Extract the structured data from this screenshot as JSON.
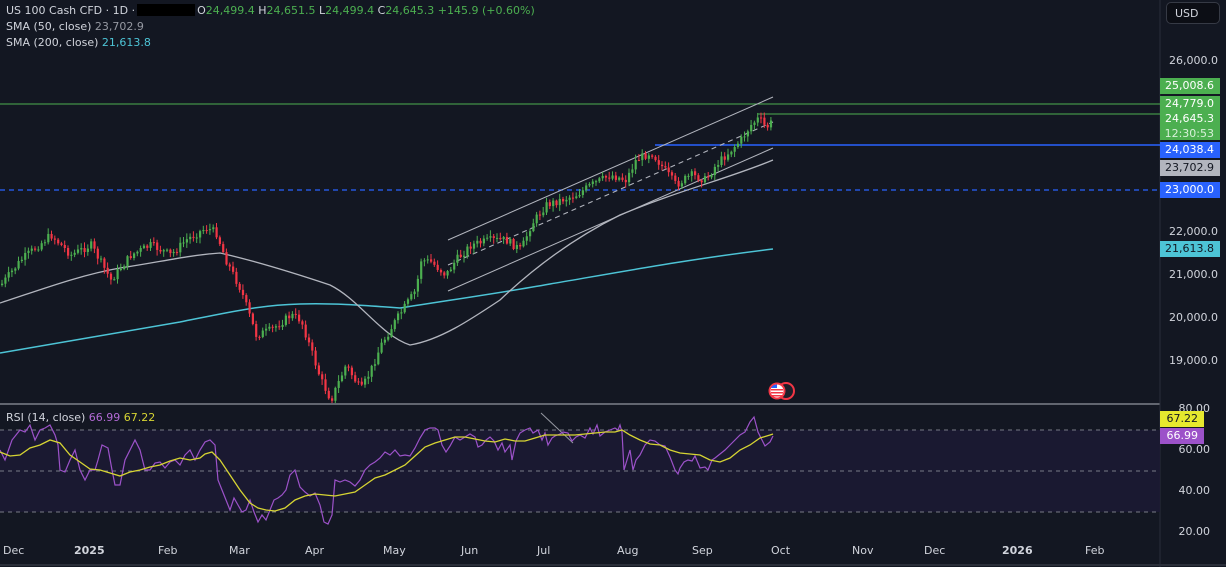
{
  "header": {
    "symbol": "US 100 Cash CFD · 1D ·",
    "ohlc": {
      "o_label": "O",
      "o": "24,499.4",
      "h_label": "H",
      "h": "24,651.5",
      "l_label": "L",
      "l": "24,499.4",
      "c_label": "C",
      "c": "24,645.3",
      "change": "+145.9 (+0.60%)"
    },
    "sma50": {
      "label": "SMA (50, close)",
      "value": "23,702.9"
    },
    "sma200": {
      "label": "SMA (200, close)",
      "value": "21,613.8"
    },
    "currency_button": "USD"
  },
  "rsi_legend": {
    "label": "RSI (14, close)",
    "rsi": "66.99",
    "ma": "67.22"
  },
  "price_axis": {
    "ticks": [
      "26,000.0",
      "22,000.0",
      "21,000.0",
      "20,000.0",
      "19,000.0"
    ],
    "tags": {
      "resistance_top": "25,008.6",
      "resistance": "24,779.0",
      "last_price": "24,645.3",
      "countdown": "12:30:53",
      "support_blue": "24,038.4",
      "sma50": "23,702.9",
      "support_dashed": "23,000.0",
      "sma200": "21,613.8"
    }
  },
  "rsi_axis": {
    "ticks": [
      "80.00",
      "60.00",
      "40.00",
      "20.00"
    ],
    "tags": {
      "ma": "67.22",
      "rsi": "66.99"
    }
  },
  "time_axis": [
    "Dec",
    "2025",
    "Feb",
    "Mar",
    "Apr",
    "May",
    "Jun",
    "Jul",
    "Aug",
    "Sep",
    "Oct",
    "Nov",
    "Dec",
    "2026",
    "Feb"
  ],
  "colors": {
    "bg": "#131722",
    "up": "#4caf50",
    "down": "#f23645",
    "sma50": "#b2b5be",
    "sma200": "#4dc4d6",
    "blue": "#2962ff",
    "rsi": "#9c52c9",
    "rsi_ma": "#d6d433"
  },
  "chart_data": {
    "type": "candlestick",
    "title": "US 100 Cash CFD · 1D",
    "ohlc_last": {
      "open": 24499.4,
      "high": 24651.5,
      "low": 24499.4,
      "close": 24645.3,
      "change": 145.9,
      "change_pct": 0.6
    },
    "x_ticks": [
      "Dec",
      "2025",
      "Feb",
      "Mar",
      "Apr",
      "May",
      "Jun",
      "Jul",
      "Aug",
      "Sep",
      "Oct",
      "Nov",
      "Dec",
      "2026",
      "Feb"
    ],
    "y_ticks": [
      19000,
      20000,
      21000,
      22000,
      26000
    ],
    "approx_close_by_month": {
      "Dec": 21300,
      "Jan": 21500,
      "Feb": 21900,
      "Mar": 19700,
      "Apr": 18700,
      "May": 21200,
      "Jun": 21800,
      "Jul": 23000,
      "Aug": 23400,
      "Sep": 24600
    },
    "indicators": [
      {
        "name": "SMA (50, close)",
        "value": 23702.9
      },
      {
        "name": "SMA (200, close)",
        "value": 21613.8
      },
      {
        "name": "RSI (14, close)",
        "value": 66.99,
        "ma": 67.22,
        "levels": [
          70,
          50,
          30
        ]
      }
    ],
    "horizontal_lines": [
      {
        "value": 25008.6,
        "color": "green"
      },
      {
        "value": 24779.0,
        "color": "green"
      },
      {
        "value": 24038.4,
        "color": "blue",
        "style": "solid"
      },
      {
        "value": 23000.0,
        "color": "blue",
        "style": "dashed"
      }
    ],
    "annotations": [
      "Ascending channel (May–Sep)",
      "Upper channel trendline",
      "Lower channel trendline"
    ]
  }
}
